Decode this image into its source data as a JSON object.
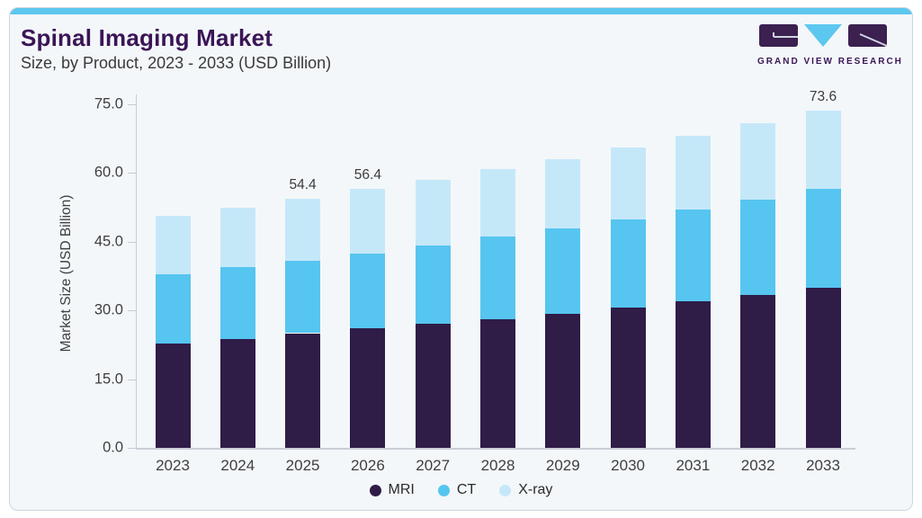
{
  "header": {
    "title": "Spinal Imaging Market",
    "subtitle": "Size, by Product, 2023 - 2033 (USD Billion)",
    "logo_text": "GRAND VIEW RESEARCH"
  },
  "chart_data": {
    "type": "bar",
    "stacked": true,
    "title": "Spinal Imaging Market Size, by Product, 2023 - 2033 (USD Billion)",
    "xlabel": "",
    "ylabel": "Market Size (USD Billion)",
    "categories": [
      "2023",
      "2024",
      "2025",
      "2026",
      "2027",
      "2028",
      "2029",
      "2030",
      "2031",
      "2032",
      "2033"
    ],
    "series": [
      {
        "name": "MRI",
        "color": "#2f1c47",
        "values": [
          22.8,
          23.8,
          25.0,
          26.0,
          27.0,
          28.1,
          29.3,
          30.6,
          32.0,
          33.4,
          34.9
        ]
      },
      {
        "name": "CT",
        "color": "#56c5f0",
        "values": [
          15.1,
          15.6,
          15.8,
          16.3,
          17.2,
          17.9,
          18.6,
          19.3,
          19.9,
          20.8,
          21.5
        ]
      },
      {
        "name": "X-ray",
        "color": "#c5e8f9",
        "values": [
          12.7,
          13.0,
          13.6,
          14.1,
          14.3,
          14.7,
          15.1,
          15.5,
          16.1,
          16.5,
          17.2
        ]
      }
    ],
    "totals": [
      50.6,
      52.4,
      54.4,
      56.4,
      58.5,
      60.7,
      63.0,
      65.4,
      68.0,
      70.7,
      73.6
    ],
    "total_labels_shown": {
      "2025": "54.4",
      "2026": "56.4",
      "2033": "73.6"
    },
    "y_ticks": [
      "0.0",
      "15.0",
      "30.0",
      "45.0",
      "60.0",
      "75.0"
    ],
    "ylim": [
      0,
      75
    ],
    "grid": false,
    "legend_position": "bottom-center"
  },
  "colors": {
    "accent_strip": "#5cc7ef",
    "card_background": "#f3f7fa",
    "card_border": "#ccd6df",
    "title_text": "#3b1556",
    "body_text": "#3f3f3f",
    "axis_line": "#c6cbd4",
    "logo_purple": "#3b2050",
    "logo_blue": "#5cc7ef"
  }
}
